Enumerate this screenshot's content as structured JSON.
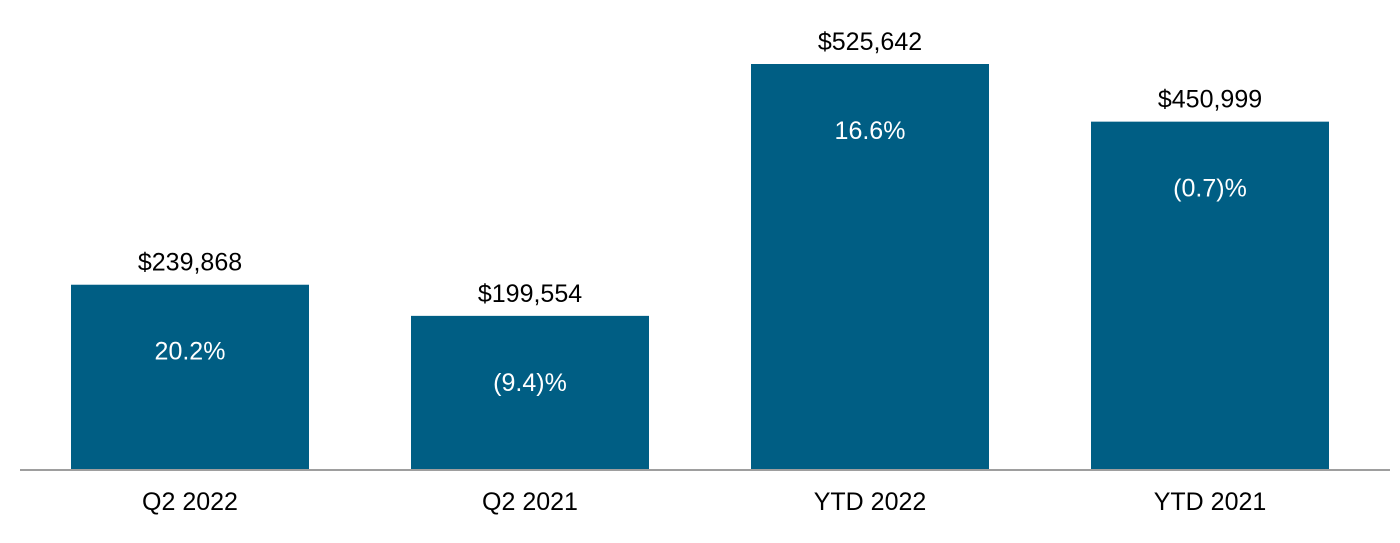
{
  "chart_data": {
    "type": "bar",
    "categories": [
      "Q2 2022",
      "Q2 2021",
      "YTD 2022",
      "YTD 2021"
    ],
    "values": [
      239868,
      199554,
      525642,
      450999
    ],
    "value_labels": [
      "$239,868",
      "$199,554",
      "$525,642",
      "$450,999"
    ],
    "change_labels": [
      "20.2%",
      "(9.4)%",
      "16.6%",
      "(0.7)%"
    ],
    "ylim": [
      0,
      525642
    ],
    "grid": false,
    "legend": "none",
    "colors": {
      "bar": "#005E84",
      "axis": "#9E9E9E",
      "label": "#000000",
      "inner_label": "#FFFFFF"
    }
  }
}
